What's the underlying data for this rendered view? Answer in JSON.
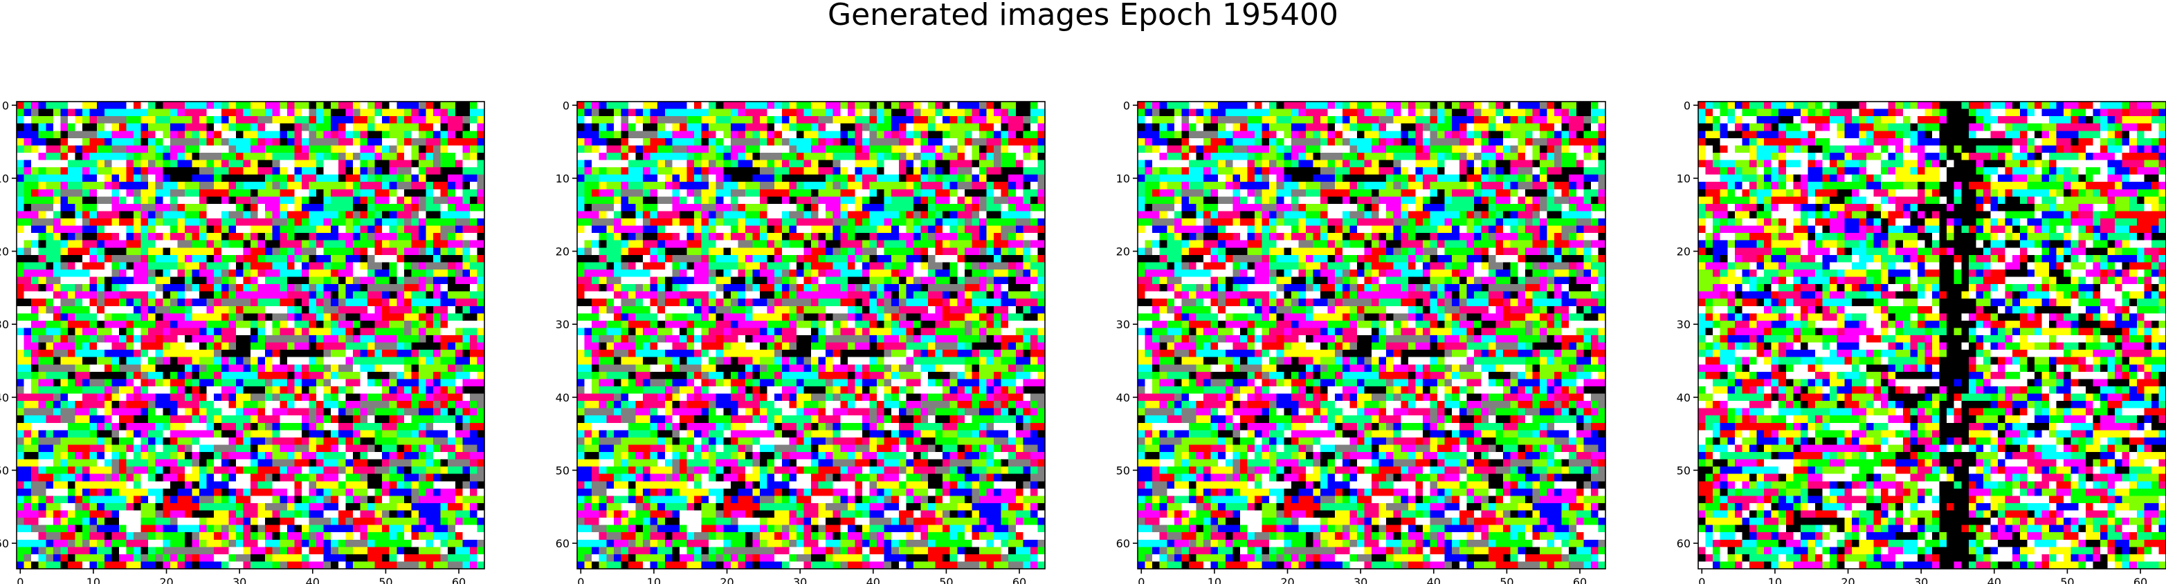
{
  "figure": {
    "suptitle": "Generated images Epoch 195400"
  },
  "chart_data": [
    {
      "type": "heatmap",
      "title": "",
      "xlabel": "",
      "ylabel": "",
      "xlim": [
        -0.5,
        63.5
      ],
      "ylim": [
        63.5,
        -0.5
      ],
      "xticks": [
        0,
        10,
        20,
        30,
        40,
        50,
        60
      ],
      "yticks": [
        0,
        10,
        20,
        30,
        40,
        50,
        60
      ],
      "grid": false,
      "rows": 64,
      "cols": 64,
      "seed": 7,
      "palette": [
        "#ff0000",
        "#00ff00",
        "#0000ff",
        "#ffff00",
        "#ff00ff",
        "#00ffff",
        "#ffffff",
        "#000000",
        "#00ff80",
        "#ff0080",
        "#808080",
        "#80ff00"
      ],
      "dark_column_band": []
    },
    {
      "type": "heatmap",
      "title": "",
      "xlabel": "",
      "ylabel": "",
      "xlim": [
        -0.5,
        63.5
      ],
      "ylim": [
        63.5,
        -0.5
      ],
      "xticks": [
        0,
        10,
        20,
        30,
        40,
        50,
        60
      ],
      "yticks": [
        0,
        10,
        20,
        30,
        40,
        50,
        60
      ],
      "grid": false,
      "rows": 64,
      "cols": 64,
      "seed": 7,
      "palette": [
        "#ff0000",
        "#00ff00",
        "#0000ff",
        "#ffff00",
        "#ff00ff",
        "#00ffff",
        "#ffffff",
        "#000000",
        "#00ff80",
        "#ff0080",
        "#808080",
        "#80ff00"
      ],
      "dark_column_band": []
    },
    {
      "type": "heatmap",
      "title": "",
      "xlabel": "",
      "ylabel": "",
      "xlim": [
        -0.5,
        63.5
      ],
      "ylim": [
        63.5,
        -0.5
      ],
      "xticks": [
        0,
        10,
        20,
        30,
        40,
        50,
        60
      ],
      "yticks": [
        0,
        10,
        20,
        30,
        40,
        50,
        60
      ],
      "grid": false,
      "rows": 64,
      "cols": 64,
      "seed": 7,
      "palette": [
        "#ff0000",
        "#00ff00",
        "#0000ff",
        "#ffff00",
        "#ff00ff",
        "#00ffff",
        "#ffffff",
        "#000000",
        "#00ff80",
        "#ff0080",
        "#808080",
        "#80ff00"
      ],
      "dark_column_band": []
    },
    {
      "type": "heatmap",
      "title": "",
      "xlabel": "",
      "ylabel": "",
      "xlim": [
        -0.5,
        63.5
      ],
      "ylim": [
        63.5,
        -0.5
      ],
      "xticks": [
        0,
        10,
        20,
        30,
        40,
        50,
        60
      ],
      "yticks": [
        0,
        10,
        20,
        30,
        40,
        50,
        60
      ],
      "grid": false,
      "rows": 64,
      "cols": 64,
      "seed": 91,
      "palette": [
        "#ff0000",
        "#00ff00",
        "#0000ff",
        "#ffff00",
        "#ff00ff",
        "#00ffff",
        "#ffffff",
        "#ffffff",
        "#000000",
        "#00ff80",
        "#ff0080",
        "#80ff00"
      ],
      "dark_column_band": [
        33,
        36
      ]
    }
  ]
}
